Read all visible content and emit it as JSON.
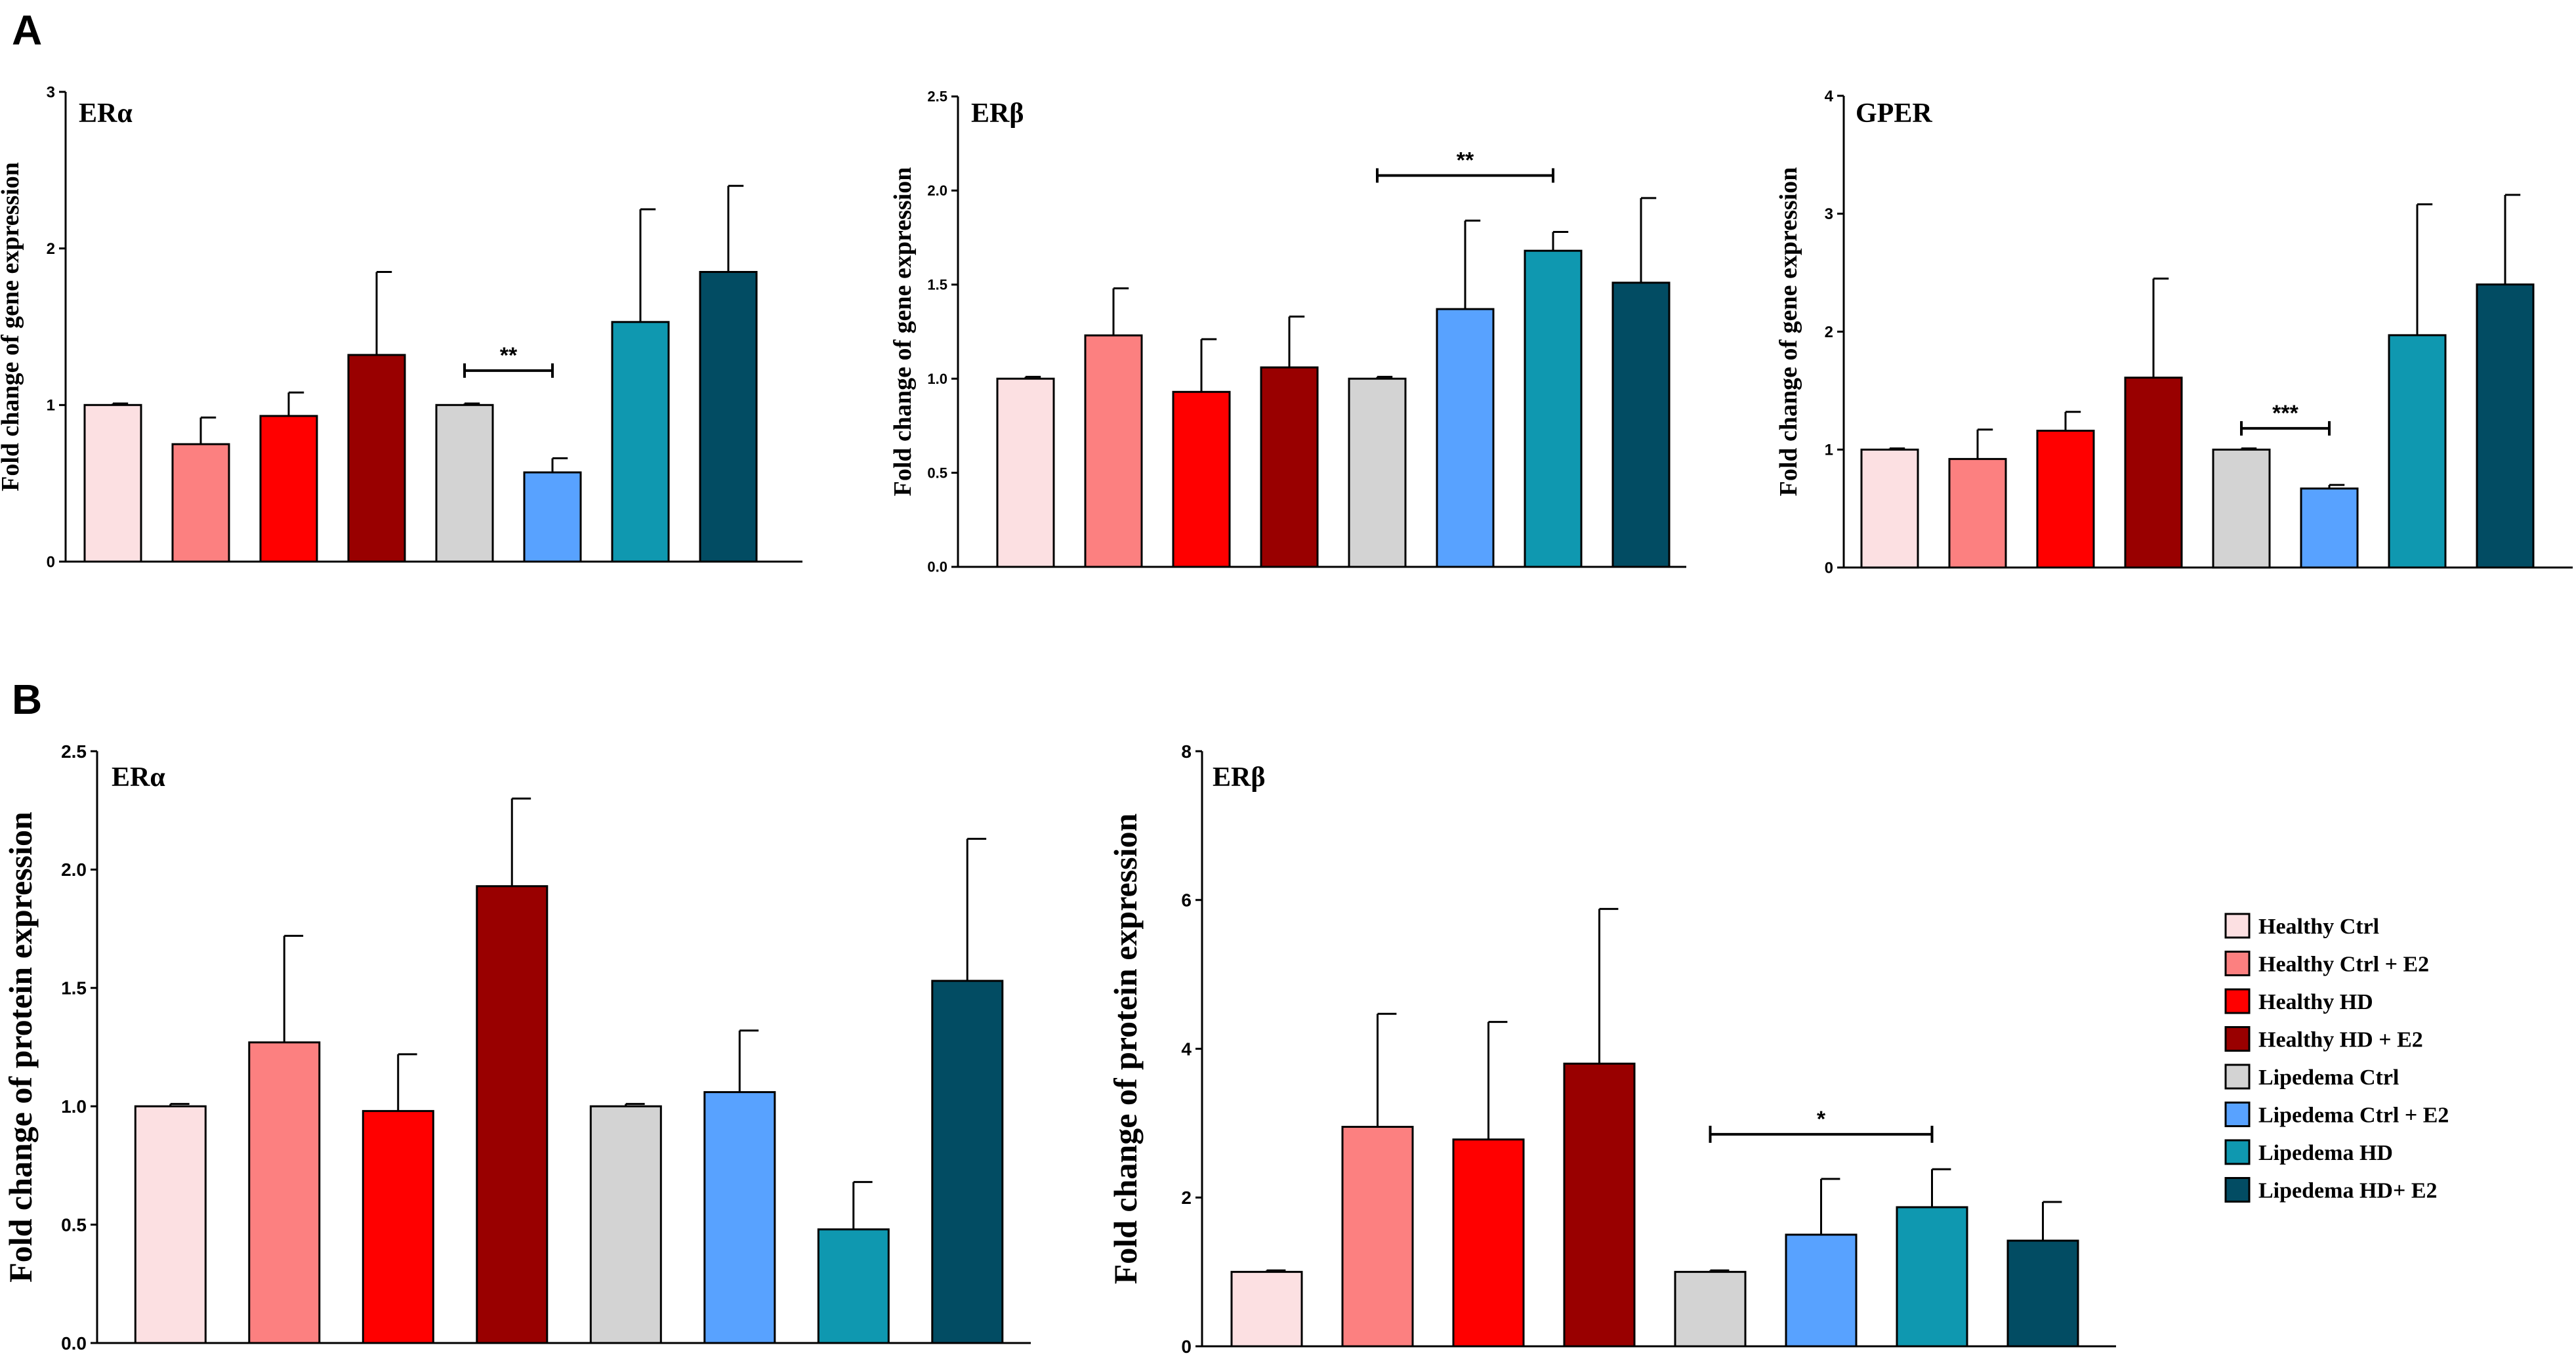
{
  "panels": [
    {
      "letter": "A"
    },
    {
      "letter": "B"
    }
  ],
  "legend": [
    {
      "label": "Healthy Ctrl",
      "color": "#FCE0E2"
    },
    {
      "label": "Healthy Ctrl + E2",
      "color": "#FC8080"
    },
    {
      "label": "Healthy HD",
      "color": "#FF0000"
    },
    {
      "label": "Healthy HD + E2",
      "color": "#990000"
    },
    {
      "label": "Lipedema Ctrl",
      "color": "#D3D3D3"
    },
    {
      "label": "Lipedema Ctrl + E2",
      "color": "#58A2FF"
    },
    {
      "label": "Lipedema HD",
      "color": "#0F98B0"
    },
    {
      "label": "Lipedema HD+ E2",
      "color": "#024C63"
    }
  ],
  "chart_data": [
    {
      "type": "bar",
      "title": "ERα",
      "ylabel": "Fold change of gene expression",
      "ylim": [
        0,
        3
      ],
      "yticks": [
        "0",
        "1",
        "2",
        "3"
      ],
      "values": [
        1.0,
        0.75,
        0.93,
        1.32,
        1.0,
        0.57,
        1.53,
        1.85
      ],
      "errors": [
        0.01,
        0.17,
        0.15,
        0.53,
        0.01,
        0.09,
        0.72,
        0.55
      ],
      "colors": [
        "#FCE0E2",
        "#FC8080",
        "#FF0000",
        "#990000",
        "#D3D3D3",
        "#58A2FF",
        "#0F98B0",
        "#024C63"
      ],
      "significance": [
        {
          "from": 4,
          "to": 5,
          "label": "**",
          "y": 1.22
        }
      ]
    },
    {
      "type": "bar",
      "title": "ERβ",
      "ylabel": "Fold change of gene expression",
      "ylim": [
        0,
        2.5
      ],
      "yticks": [
        "0.0",
        "0.5",
        "1.0",
        "1.5",
        "2.0",
        "2.5"
      ],
      "values": [
        1.0,
        1.23,
        0.93,
        1.06,
        1.0,
        1.37,
        1.68,
        1.51
      ],
      "errors": [
        0.01,
        0.25,
        0.28,
        0.27,
        0.01,
        0.47,
        0.1,
        0.45
      ],
      "colors": [
        "#FCE0E2",
        "#FC8080",
        "#FF0000",
        "#990000",
        "#D3D3D3",
        "#58A2FF",
        "#0F98B0",
        "#024C63"
      ],
      "significance": [
        {
          "from": 4,
          "to": 6,
          "label": "**",
          "y": 2.08
        }
      ]
    },
    {
      "type": "bar",
      "title": "GPER",
      "ylabel": "Fold change of gene expression",
      "ylim": [
        0,
        4
      ],
      "yticks": [
        "0",
        "1",
        "2",
        "3",
        "4"
      ],
      "values": [
        1.0,
        0.92,
        1.16,
        1.61,
        1.0,
        0.67,
        1.97,
        2.4
      ],
      "errors": [
        0.01,
        0.25,
        0.16,
        0.84,
        0.01,
        0.03,
        1.11,
        0.76
      ],
      "colors": [
        "#FCE0E2",
        "#FC8080",
        "#FF0000",
        "#990000",
        "#D3D3D3",
        "#58A2FF",
        "#0F98B0",
        "#024C63"
      ],
      "significance": [
        {
          "from": 4,
          "to": 5,
          "label": "***",
          "y": 1.18
        }
      ]
    },
    {
      "type": "bar",
      "title": "ERα",
      "ylabel": "Fold change of protein expression",
      "ylim": [
        0,
        2.5
      ],
      "yticks": [
        "0.0",
        "0.5",
        "1.0",
        "1.5",
        "2.0",
        "2.5"
      ],
      "values": [
        1.0,
        1.27,
        0.98,
        1.93,
        1.0,
        1.06,
        0.48,
        1.53
      ],
      "errors": [
        0.01,
        0.45,
        0.24,
        0.37,
        0.01,
        0.26,
        0.2,
        0.6
      ],
      "colors": [
        "#FCE0E2",
        "#FC8080",
        "#FF0000",
        "#990000",
        "#D3D3D3",
        "#58A2FF",
        "#0F98B0",
        "#024C63"
      ],
      "significance": []
    },
    {
      "type": "bar",
      "title": "ERβ",
      "ylabel": "Fold change of protein expression",
      "ylim": [
        0,
        8
      ],
      "yticks": [
        "0",
        "2",
        "4",
        "6",
        "8"
      ],
      "values": [
        1.0,
        2.95,
        2.78,
        3.8,
        1.0,
        1.5,
        1.87,
        1.42
      ],
      "errors": [
        0.02,
        1.52,
        1.58,
        2.08,
        0.02,
        0.75,
        0.51,
        0.52
      ],
      "colors": [
        "#FCE0E2",
        "#FC8080",
        "#FF0000",
        "#990000",
        "#D3D3D3",
        "#58A2FF",
        "#0F98B0",
        "#024C63"
      ],
      "significance": [
        {
          "from": 4,
          "to": 6,
          "label": "*",
          "y": 2.85
        }
      ]
    }
  ]
}
